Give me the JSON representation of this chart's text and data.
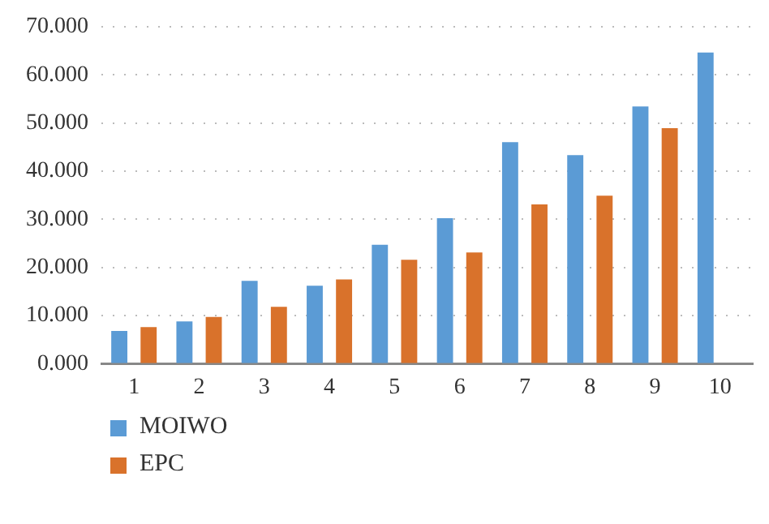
{
  "chart_data": {
    "type": "bar",
    "categories": [
      "1",
      "2",
      "3",
      "4",
      "5",
      "6",
      "7",
      "8",
      "9",
      "10"
    ],
    "series": [
      {
        "name": "MOIWO",
        "color": "#5b9bd5",
        "values": [
          6.8,
          8.8,
          17.2,
          16.2,
          24.7,
          30.2,
          46.0,
          43.3,
          53.4,
          64.6
        ]
      },
      {
        "name": "EPC",
        "color": "#d9722b",
        "values": [
          7.6,
          9.7,
          11.8,
          17.5,
          21.6,
          23.1,
          33.1,
          34.9,
          48.9,
          null
        ]
      }
    ],
    "ylim": [
      0,
      70
    ],
    "yticks": [
      {
        "value": 0,
        "label": "0.000"
      },
      {
        "value": 10,
        "label": "10.000"
      },
      {
        "value": 20,
        "label": "20.000"
      },
      {
        "value": 30,
        "label": "30.000"
      },
      {
        "value": 40,
        "label": "40.000"
      },
      {
        "value": 50,
        "label": "50.000"
      },
      {
        "value": 60,
        "label": "60.000"
      },
      {
        "value": 70,
        "label": "70.000"
      }
    ],
    "grid": "y",
    "legend": "bottom left"
  }
}
